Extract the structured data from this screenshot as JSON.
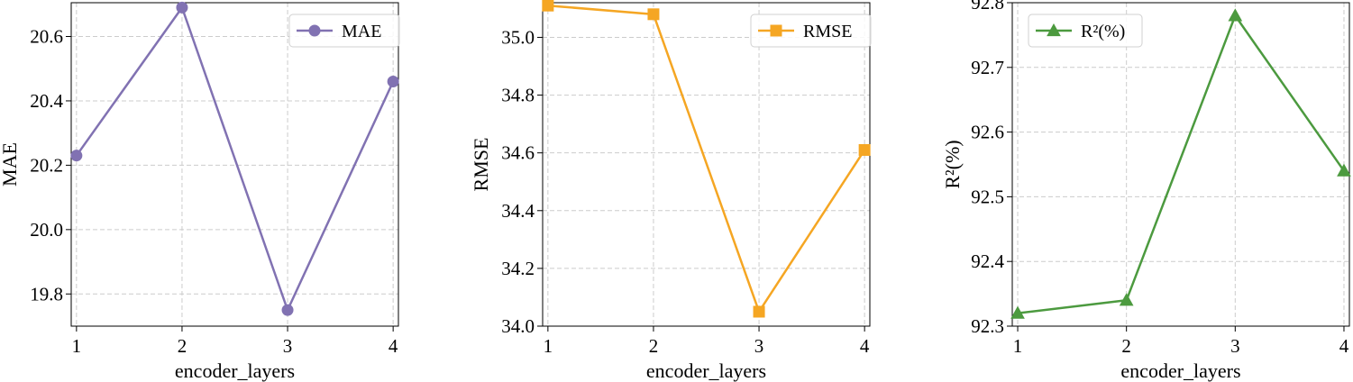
{
  "chart_data": [
    {
      "type": "line",
      "x": [
        1,
        2,
        3,
        4
      ],
      "series": [
        {
          "name": "MAE",
          "values": [
            20.23,
            20.69,
            19.75,
            20.46
          ],
          "color": "#8172b2",
          "marker": "circle"
        }
      ],
      "xlabel": "encoder_layers",
      "ylabel": "MAE",
      "xticks": [
        "1",
        "2",
        "3",
        "4"
      ],
      "yticks": [
        19.8,
        20.0,
        20.2,
        20.4,
        20.6
      ],
      "ytick_labels": [
        "19.8",
        "20.0",
        "20.2",
        "20.4",
        "20.6"
      ],
      "xlim": [
        0.95,
        4.05
      ],
      "ylim": [
        19.7,
        20.705
      ],
      "grid": true,
      "legend_position": "top-right"
    },
    {
      "type": "line",
      "x": [
        1,
        2,
        3,
        4
      ],
      "series": [
        {
          "name": "RMSE",
          "values": [
            35.11,
            35.08,
            34.05,
            34.61
          ],
          "color": "#f5a623",
          "marker": "square"
        }
      ],
      "xlabel": "encoder_layers",
      "ylabel": "RMSE",
      "xticks": [
        "1",
        "2",
        "3",
        "4"
      ],
      "yticks": [
        34.0,
        34.2,
        34.4,
        34.6,
        34.8,
        35.0
      ],
      "ytick_labels": [
        "34.0",
        "34.2",
        "34.4",
        "34.6",
        "34.8",
        "35.0"
      ],
      "xlim": [
        0.95,
        4.05
      ],
      "ylim": [
        34.0,
        35.12
      ],
      "grid": true,
      "legend_position": "top-right"
    },
    {
      "type": "line",
      "x": [
        1,
        2,
        3,
        4
      ],
      "series": [
        {
          "name": "R²(%)",
          "values": [
            92.32,
            92.34,
            92.78,
            92.54
          ],
          "color": "#4c9a3f",
          "marker": "triangle"
        }
      ],
      "xlabel": "encoder_layers",
      "ylabel": "R²(%)",
      "xticks": [
        "1",
        "2",
        "3",
        "4"
      ],
      "yticks": [
        92.3,
        92.4,
        92.5,
        92.6,
        92.7,
        92.8
      ],
      "ytick_labels": [
        "92.3",
        "92.4",
        "92.5",
        "92.6",
        "92.7",
        "92.8"
      ],
      "xlim": [
        0.95,
        4.05
      ],
      "ylim": [
        92.3,
        92.8
      ],
      "grid": true,
      "legend_position": "top-left"
    }
  ]
}
